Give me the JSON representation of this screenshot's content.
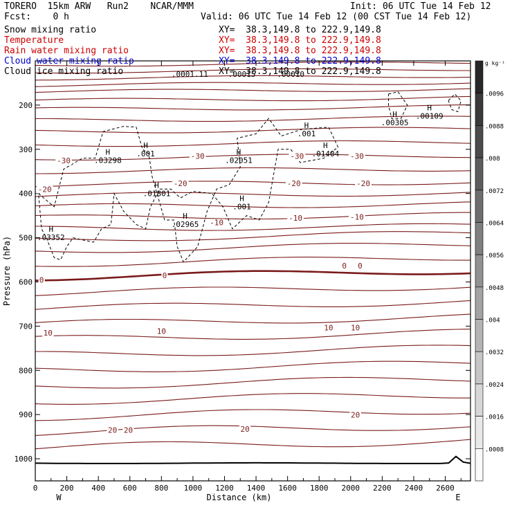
{
  "header": {
    "title": "TORERO  15km ARW   Run2    NCAR/MMM",
    "init": "Init: 06 UTC Tue 14 Feb 12",
    "fcst": "Fcst:    0 h",
    "valid": "Valid: 06 UTC Tue 14 Feb 12 (00 CST Tue 14 Feb 12)"
  },
  "fields": [
    {
      "name": "Snow mixing ratio",
      "xy": "XY=  38.3,149.8 to 222.9,149.8",
      "color": "#000000"
    },
    {
      "name": "Temperature",
      "xy": "XY=  38.3,149.8 to 222.9,149.8",
      "color": "#cc0000"
    },
    {
      "name": "Rain water mixing ratio",
      "xy": "XY=  38.3,149.8 to 222.9,149.8",
      "color": "#cc0000"
    },
    {
      "name": "Cloud water mixing ratio",
      "xy": "XY=  38.3,149.8 to 222.9,149.8",
      "color": "#0000cc"
    },
    {
      "name": "Cloud ice mixing ratio",
      "xy": "XY=  38.3,149.8 to 222.9,149.8",
      "color": "#000000"
    }
  ],
  "chart_data": {
    "type": "cross-section",
    "xlabel": "Distance (km)",
    "ylabel": "Pressure (hPa)",
    "x_ticks": [
      0,
      200,
      400,
      600,
      800,
      1000,
      1200,
      1400,
      1600,
      1800,
      2000,
      2200,
      2400,
      2600
    ],
    "xlim": [
      0,
      2760
    ],
    "y_ticks": [
      200,
      300,
      400,
      500,
      600,
      700,
      800,
      900,
      1000
    ],
    "ylim": [
      100,
      1050
    ],
    "west_label": "W",
    "east_label": "E",
    "colorbar": {
      "unit": "g kg⁻¹",
      "ticks": [
        ".0096",
        ".0088",
        ".008",
        ".0072",
        ".0064",
        ".0056",
        ".0048",
        ".004",
        ".0032",
        ".0024",
        ".0016",
        ".0008"
      ]
    },
    "temperature_labels": [
      {
        "text": "-30",
        "x": 180,
        "p": 330
      },
      {
        "text": "-30",
        "x": 1030,
        "p": 320
      },
      {
        "text": "-30",
        "x": 1660,
        "p": 320
      },
      {
        "text": "-30",
        "x": 2040,
        "p": 320
      },
      {
        "text": "-20",
        "x": 60,
        "p": 395
      },
      {
        "text": "-20",
        "x": 920,
        "p": 382
      },
      {
        "text": "-20",
        "x": 1640,
        "p": 382
      },
      {
        "text": "-20",
        "x": 2080,
        "p": 382
      },
      {
        "text": "-10",
        "x": 1150,
        "p": 470
      },
      {
        "text": "-10",
        "x": 1650,
        "p": 460
      },
      {
        "text": "-10",
        "x": 2040,
        "p": 458
      },
      {
        "text": "0",
        "x": 40,
        "p": 600
      },
      {
        "text": "0",
        "x": 820,
        "p": 590
      },
      {
        "text": "0",
        "x": 1960,
        "p": 568
      },
      {
        "text": "0",
        "x": 2060,
        "p": 568
      },
      {
        "text": "10",
        "x": 80,
        "p": 720
      },
      {
        "text": "10",
        "x": 800,
        "p": 716
      },
      {
        "text": "10",
        "x": 1860,
        "p": 708
      },
      {
        "text": "10",
        "x": 2030,
        "p": 708
      },
      {
        "text": "20",
        "x": 490,
        "p": 940
      },
      {
        "text": "20",
        "x": 590,
        "p": 940
      },
      {
        "text": "20",
        "x": 1330,
        "p": 937
      },
      {
        "text": "20",
        "x": 2030,
        "p": 905
      }
    ],
    "extrema": [
      {
        "label": "H",
        "value": ".03298",
        "x": 460,
        "p": 315
      },
      {
        "label": "H",
        "value": ".001",
        "x": 700,
        "p": 300
      },
      {
        "label": "H",
        "value": ".01801",
        "x": 770,
        "p": 390
      },
      {
        "label": "H",
        "value": ".02965",
        "x": 950,
        "p": 460
      },
      {
        "label": "H",
        "value": ".03352",
        "x": 100,
        "p": 490
      },
      {
        "label": "H",
        "value": ".02051",
        "x": 1290,
        "p": 315
      },
      {
        "label": "H",
        "value": ".001",
        "x": 1310,
        "p": 420
      },
      {
        "label": "H",
        "value": ".001",
        "x": 1720,
        "p": 255
      },
      {
        "label": "H",
        "value": ".01404",
        "x": 1840,
        "p": 300
      },
      {
        "label": "H",
        "value": ".00305",
        "x": 2280,
        "p": 230
      },
      {
        "label": "H",
        "value": ".00109",
        "x": 2500,
        "p": 215
      },
      {
        "label": "",
        "value": ".0001.11",
        "x": 980,
        "p": 120
      },
      {
        "label": "",
        "value": ".00015",
        "x": 1310,
        "p": 120
      },
      {
        "label": "",
        "value": ".00010",
        "x": 1620,
        "p": 120
      }
    ]
  }
}
